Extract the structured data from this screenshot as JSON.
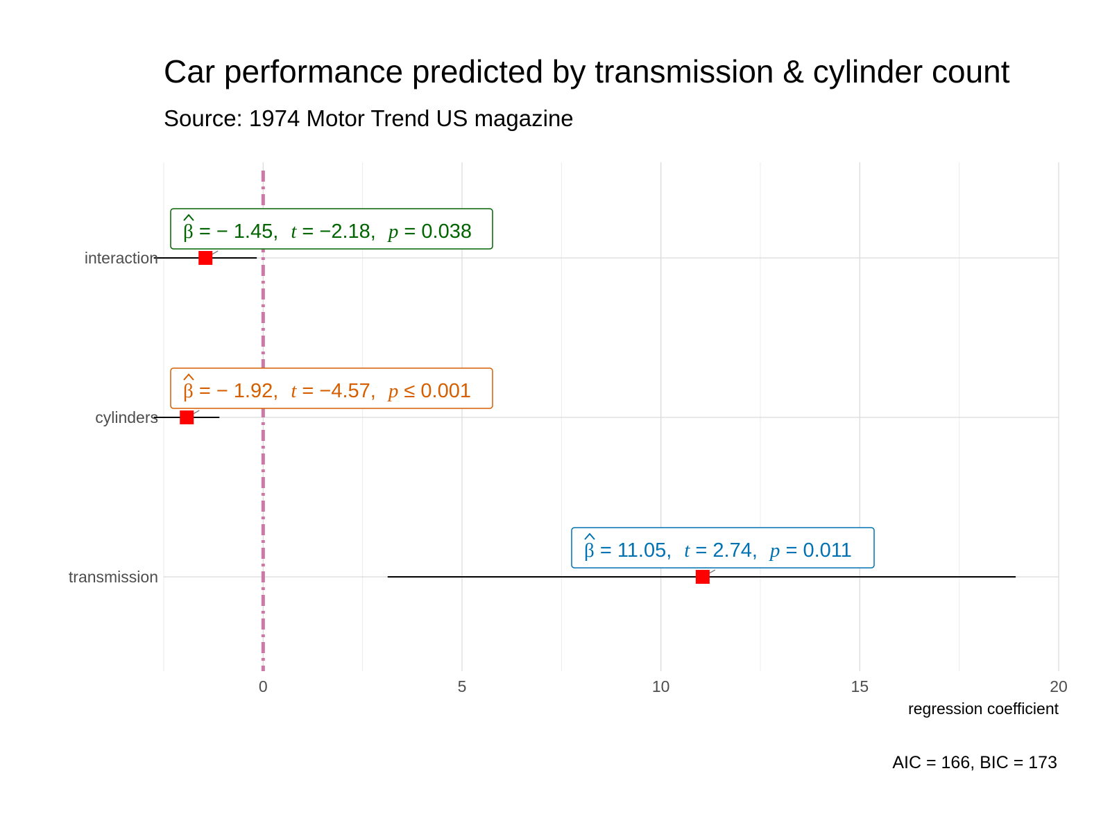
{
  "chart_data": {
    "type": "forest",
    "title": "Car performance predicted by transmission & cylinder count",
    "subtitle": "Source: 1974 Motor Trend US magazine",
    "xlabel": "regression coefficient",
    "caption": "AIC = 166, BIC = 173",
    "xlim": [
      -2.5,
      20
    ],
    "x_ticks": [
      0,
      5,
      10,
      15,
      20
    ],
    "x_tick_labels": [
      "0",
      "5",
      "10",
      "15",
      "20"
    ],
    "reference_line": 0,
    "reference_line_color": "#CC79A7",
    "point_color": "#FF0000",
    "terms": [
      {
        "label": "interaction",
        "estimate": -1.45,
        "ci_low": -2.75,
        "ci_high": -0.16,
        "beta": "-1.45",
        "t": "-2.18",
        "p": "0.038",
        "p_op": "=",
        "color": "#006400"
      },
      {
        "label": "cylinders",
        "estimate": -1.92,
        "ci_low": -2.75,
        "ci_high": -1.1,
        "beta": "-1.92",
        "t": "-4.57",
        "p": "0.001",
        "p_op": "≤",
        "color": "#D55E00"
      },
      {
        "label": "transmission",
        "estimate": 11.05,
        "ci_low": 3.13,
        "ci_high": 18.92,
        "beta": "11.05",
        "t": "2.74",
        "p": "0.011",
        "p_op": "=",
        "color": "#0072B2"
      }
    ],
    "grid": true
  }
}
